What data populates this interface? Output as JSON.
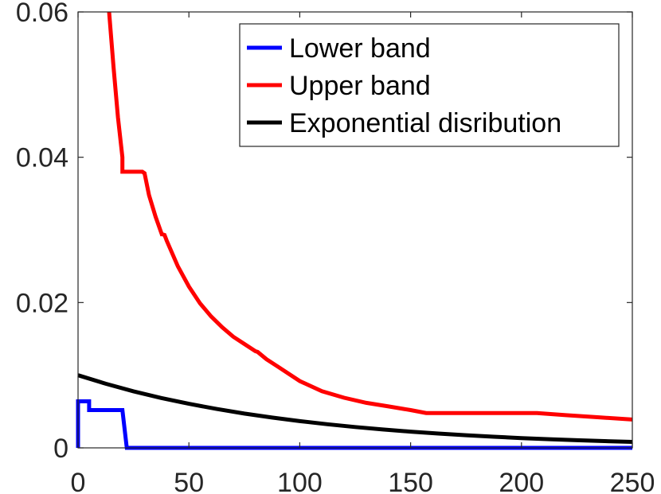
{
  "chart_data": {
    "type": "line",
    "title": "",
    "xlabel": "",
    "ylabel": "",
    "xlim": [
      0,
      250
    ],
    "ylim": [
      0,
      0.06
    ],
    "xticks": [
      0,
      50,
      100,
      150,
      200,
      250
    ],
    "xtick_labels": [
      "0",
      "50",
      "100",
      "150",
      "200",
      "250"
    ],
    "yticks": [
      0,
      0.02,
      0.04,
      0.06
    ],
    "ytick_labels": [
      "0",
      "0.02",
      "0.04",
      "0.06"
    ],
    "grid": false,
    "legend_position": "top-right",
    "series": [
      {
        "name": "Lower band",
        "color": "#0000ff",
        "x": [
          0,
          0,
          5,
          5,
          20,
          22,
          22,
          250
        ],
        "y": [
          0,
          0.0064,
          0.0064,
          0.0052,
          0.0052,
          0,
          0,
          0
        ]
      },
      {
        "name": "Upper band",
        "color": "#ff0000",
        "x": [
          14,
          16,
          18,
          20,
          20,
          29,
          30,
          32,
          35,
          38,
          38,
          39,
          40,
          45,
          50,
          55,
          60,
          65,
          70,
          75,
          80,
          81,
          85,
          90,
          100,
          110,
          120,
          130,
          140,
          150,
          157,
          160,
          180,
          200,
          207,
          220,
          235,
          250
        ],
        "y": [
          0.06,
          0.0525,
          0.0455,
          0.04,
          0.038,
          0.038,
          0.0378,
          0.0348,
          0.0318,
          0.0292,
          0.0294,
          0.0293,
          0.0285,
          0.025,
          0.0222,
          0.0199,
          0.0181,
          0.0166,
          0.0153,
          0.0143,
          0.0133,
          0.0132,
          0.0122,
          0.0112,
          0.0092,
          0.0078,
          0.0069,
          0.0062,
          0.0057,
          0.0052,
          0.0048,
          0.0048,
          0.0048,
          0.0048,
          0.0048,
          0.0045,
          0.0042,
          0.0039
        ]
      },
      {
        "name": "Exponential disribution",
        "color": "#000000",
        "x": [
          0,
          12.5,
          25,
          37.5,
          50,
          62.5,
          75,
          87.5,
          100,
          112.5,
          125,
          137.5,
          150,
          162.5,
          175,
          187.5,
          200,
          212.5,
          225,
          237.5,
          250
        ],
        "y": [
          0.01,
          0.00882,
          0.00779,
          0.00687,
          0.00607,
          0.00535,
          0.00472,
          0.00417,
          0.00368,
          0.00325,
          0.00287,
          0.00253,
          0.00223,
          0.00197,
          0.00174,
          0.00153,
          0.00135,
          0.00119,
          0.00105,
          0.00093,
          0.00082
        ]
      }
    ]
  }
}
